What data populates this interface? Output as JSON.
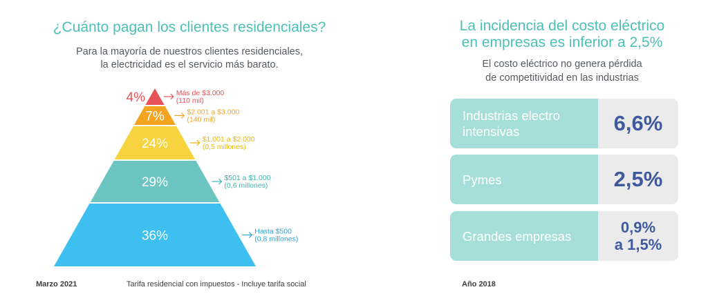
{
  "left": {
    "title": "¿Cuánto pagan los clientes residenciales?",
    "subtitle_line1": "Para la mayoría de nuestros clientes residenciales,",
    "subtitle_line2": "la electricidad es el servicio más barato.",
    "footer_date": "Marzo 2021",
    "footer_note": "Tarifa residencial con impuestos - Incluye tarifa social"
  },
  "chart_data": {
    "type": "pyramid",
    "title": "¿Cuánto pagan los clientes residenciales?",
    "tiers": [
      {
        "pct_label": "4%",
        "value": 4,
        "range": "Más de $3.000",
        "clients": "(110 mil)",
        "color": "#e8535a",
        "text_color": "#e8535a"
      },
      {
        "pct_label": "7%",
        "value": 7,
        "range": "$2.001 a $3.000",
        "clients": "(140 mil)",
        "color": "#f4a420",
        "text_color": "#f4a420"
      },
      {
        "pct_label": "24%",
        "value": 24,
        "range": "$1.001 a $2.000",
        "clients": "(0,5 millones)",
        "color": "#f6d33f",
        "text_color": "#e9b800"
      },
      {
        "pct_label": "29%",
        "value": 29,
        "range": "$501 a $1.000",
        "clients": "(0,6 millones)",
        "color": "#6cc5c0",
        "text_color": "#3fb3ad"
      },
      {
        "pct_label": "36%",
        "value": 36,
        "range": "Hasta $500",
        "clients": "(0,8 millones)",
        "color": "#3dbff0",
        "text_color": "#26a5dd"
      }
    ]
  },
  "right": {
    "title_line1": "La incidencia del costo eléctrico",
    "title_line2": "en empresas es inferior a 2,5%",
    "subtitle_line1": "El costo eléctrico no genera pérdida",
    "subtitle_line2": "de competitividad en las industrias",
    "rows": [
      {
        "label_line1": "Industrias electro",
        "label_line2": "intensivas",
        "value": "6,6%"
      },
      {
        "label_line1": "Pymes",
        "label_line2": "",
        "value": "2,5%"
      },
      {
        "label_line1": "Grandes empresas",
        "label_line2": "",
        "value_line1": "0,9%",
        "value_line2": "a 1,5%"
      }
    ],
    "footer_date": "Año 2018"
  }
}
